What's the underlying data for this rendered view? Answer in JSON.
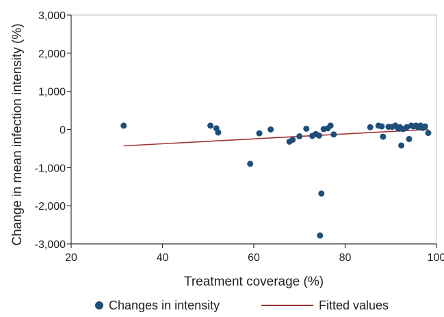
{
  "chart_data": {
    "type": "scatter",
    "xlabel": "Treatment coverage (%)",
    "ylabel": "Change in mean infection intensity (%)",
    "xlim": [
      20,
      100
    ],
    "ylim": [
      -3000,
      3000
    ],
    "x_ticks": [
      20,
      40,
      60,
      80,
      100
    ],
    "y_ticks": [
      -3000,
      -2000,
      -1000,
      0,
      1000,
      2000,
      3000
    ],
    "x_tick_labels": [
      "20",
      "40",
      "60",
      "80",
      "100"
    ],
    "y_tick_labels": [
      "-3,000",
      "-2,000",
      "-1,000",
      "0",
      "1,000",
      "2,000",
      "3,000"
    ],
    "grid": false,
    "legend_position": "bottom",
    "legend": {
      "scatter_label": "Changes in intensity",
      "fit_label": "Fitted values"
    },
    "colors": {
      "points": "#1f4e79",
      "fit_line": "#a03030",
      "axis": "#333333"
    },
    "series": [
      {
        "name": "Changes in intensity",
        "type": "scatter",
        "points": [
          [
            31.5,
            100
          ],
          [
            50.5,
            100
          ],
          [
            51.8,
            30
          ],
          [
            52.2,
            -80
          ],
          [
            59.2,
            -900
          ],
          [
            61.2,
            -100
          ],
          [
            63.7,
            0
          ],
          [
            67.8,
            -320
          ],
          [
            68.5,
            -270
          ],
          [
            70.0,
            -180
          ],
          [
            71.5,
            20
          ],
          [
            72.8,
            -170
          ],
          [
            73.6,
            -120
          ],
          [
            74.3,
            -160
          ],
          [
            74.5,
            -2780
          ],
          [
            74.8,
            -1680
          ],
          [
            75.3,
            10
          ],
          [
            76.2,
            30
          ],
          [
            76.8,
            100
          ],
          [
            77.5,
            -130
          ],
          [
            85.5,
            60
          ],
          [
            87.3,
            100
          ],
          [
            88.0,
            80
          ],
          [
            88.3,
            -190
          ],
          [
            89.5,
            70
          ],
          [
            90.3,
            70
          ],
          [
            91.0,
            100
          ],
          [
            91.5,
            50
          ],
          [
            91.8,
            20
          ],
          [
            92.0,
            60
          ],
          [
            92.3,
            -420
          ],
          [
            92.7,
            10
          ],
          [
            93.5,
            60
          ],
          [
            94.0,
            -250
          ],
          [
            94.5,
            100
          ],
          [
            95.0,
            80
          ],
          [
            95.5,
            100
          ],
          [
            96.0,
            60
          ],
          [
            96.5,
            100
          ],
          [
            97.0,
            40
          ],
          [
            97.5,
            80
          ],
          [
            98.2,
            -90
          ]
        ]
      },
      {
        "name": "Fitted values",
        "type": "line",
        "points": [
          [
            31.5,
            -430
          ],
          [
            98.2,
            0
          ]
        ]
      }
    ]
  }
}
